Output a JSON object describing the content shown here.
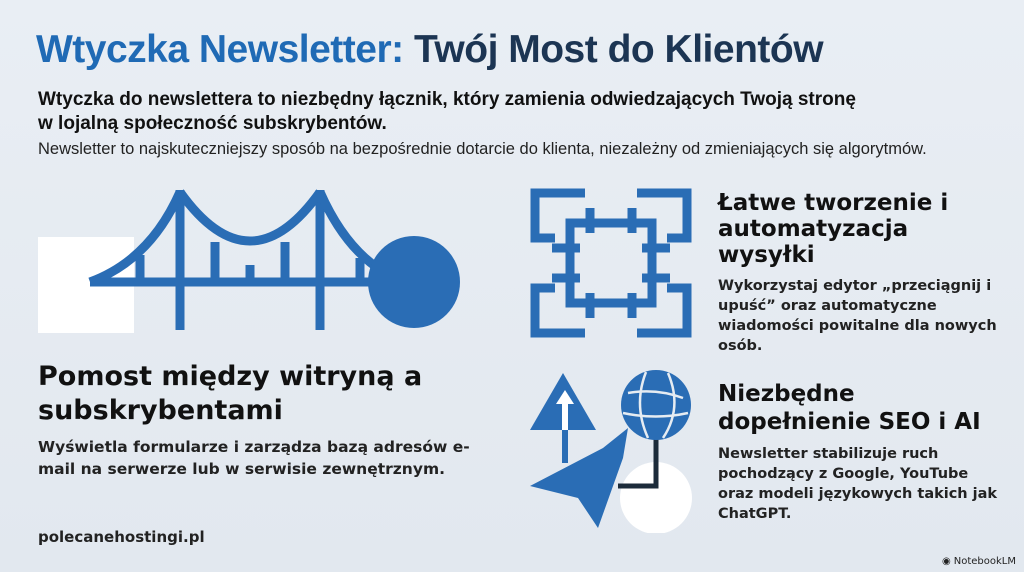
{
  "title": {
    "part1": "Wtyczka Newsletter:",
    "part2": "Twój Most do Klientów"
  },
  "lead": "Wtyczka do newslettera to niezbędny łącznik, który zamienia odwiedzających Twoją stronę w lojalną społeczność subskrybentów.",
  "subtitle": "Newsletter to najskuteczniejszy sposób na bezpośrednie dotarcie do klienta, niezależny od zmieniających się algorytmów.",
  "sections": [
    {
      "heading": "Pomost między witryną a subskrybentami",
      "text": "Wyświetla formularze i zarządza bazą adresów e-mail na serwerze lub w serwisie zewnętrznym.",
      "icon": "bridge-icon"
    },
    {
      "heading": "Łatwe tworzenie i automatyzacja wysyłki",
      "text": "Wykorzystaj edytor „przeciągnij i upuść” oraz automatyczne wiadomości powitalne dla nowych osób.",
      "icon": "interlocking-squares-icon"
    },
    {
      "heading": "Niezbędne dopełnienie SEO i AI",
      "text": "Newsletter stabilizuje ruch pochodzący z Google, YouTube oraz modeli językowych takich jak ChatGPT.",
      "icon": "globe-network-icon"
    }
  ],
  "footer": "polecanehostingi.pl",
  "brand": "NotebookLM",
  "colors": {
    "accent": "#1f6ab5",
    "navy": "#1c3553",
    "icon": "#2a6db5"
  }
}
